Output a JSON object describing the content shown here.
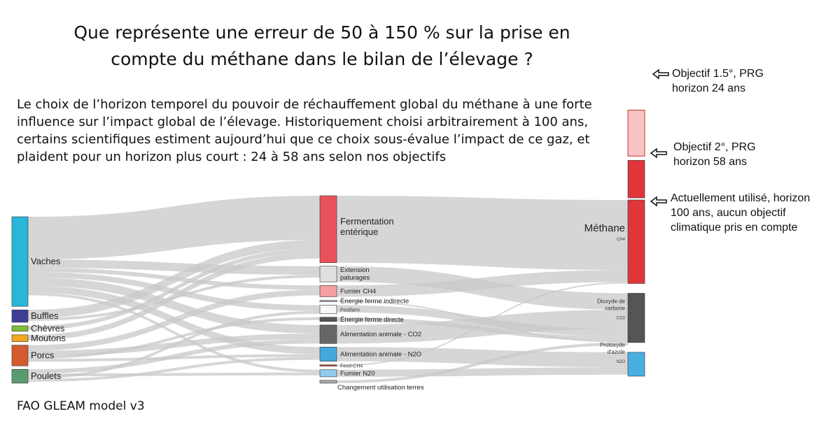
{
  "title": "Que représente une erreur de 50 à 150 % sur la prise en compte du méthane dans le bilan de l’élevage ?",
  "intro": "Le choix de l’horizon temporel du pouvoir de réchauffement global du méthane à une forte influence sur l’impact global de l’élevage. Historiquement choisi arbitrairement à 100 ans, certains scientifiques estiment aujourd’hui que ce choix sous-évalue l’impact de ce gaz, et plaident pour un horizon plus court : 24 à 58 ans selon nos objectifs",
  "source": "FAO GLEAM model v3",
  "chart_data": {
    "type": "sankey",
    "sources": [
      {
        "label": "Vaches",
        "color": "#29b6d8",
        "value": 65
      },
      {
        "label": "Buffles",
        "color": "#3f3f96",
        "value": 9
      },
      {
        "label": "Chèvres",
        "color": "#7cbc3c",
        "value": 4
      },
      {
        "label": "Moutons",
        "color": "#f0a820",
        "value": 5
      },
      {
        "label": "Porcs",
        "color": "#d45a30",
        "value": 15
      },
      {
        "label": "Poulets",
        "color": "#5a9a70",
        "value": 10
      }
    ],
    "processes": [
      {
        "label": "Fermentation entérique",
        "color": "#e8535b",
        "value": 47
      },
      {
        "label": "Extension paturages",
        "color": "#e0e0e0",
        "value": 11
      },
      {
        "label": "Fumier CH4",
        "color": "#f4a0a0",
        "value": 8
      },
      {
        "label": "Énergie ferme indirecte",
        "color": "#bbbbbb",
        "value": 1
      },
      {
        "label": "Postfarm",
        "color": "#f7f7f7",
        "value": 6
      },
      {
        "label": "Énergie ferme directe",
        "color": "#555555",
        "value": 3
      },
      {
        "label": "Alimentation animale - CO2",
        "color": "#666666",
        "value": 13
      },
      {
        "label": "Alimentation animale - N2O",
        "color": "#45a8dd",
        "value": 10
      },
      {
        "label": "Feed-CH4",
        "color": "#c0504d",
        "value": 1
      },
      {
        "label": "Fumier N20",
        "color": "#90cdf0",
        "value": 5
      },
      {
        "label": "Changement utilisation terres",
        "color": "#aaaaaa",
        "value": 2
      }
    ],
    "gases": [
      {
        "label": "Méthane",
        "sub": "CH4",
        "color": "#e0353b",
        "value": 56
      },
      {
        "label": "Dioxyde de carbone",
        "sub": "CO2",
        "color": "#555555",
        "value": 33
      },
      {
        "label": "Protoxyde d'azote",
        "sub": "N2O",
        "color": "#49aee0",
        "value": 16
      }
    ],
    "links": [
      {
        "from": "Vaches",
        "to": "Fermentation entérique",
        "value": 31
      },
      {
        "from": "Vaches",
        "to": "Extension paturages",
        "value": 6
      },
      {
        "from": "Vaches",
        "to": "Fumier CH4",
        "value": 3
      },
      {
        "from": "Vaches",
        "to": "Postfarm",
        "value": 4
      },
      {
        "from": "Vaches",
        "to": "Alimentation animale - CO2",
        "value": 6
      },
      {
        "from": "Vaches",
        "to": "Alimentation animale - N2O",
        "value": 5
      },
      {
        "from": "Vaches",
        "to": "Fumier N20",
        "value": 2
      },
      {
        "from": "Buffles",
        "to": "Fermentation entérique",
        "value": 6
      },
      {
        "from": "Buffles",
        "to": "Extension paturages",
        "value": 2
      },
      {
        "from": "Chèvres",
        "to": "Fermentation entérique",
        "value": 3
      },
      {
        "from": "Moutons",
        "to": "Fermentation entérique",
        "value": 4
      },
      {
        "from": "Porcs",
        "to": "Fumier CH4",
        "value": 4
      },
      {
        "from": "Porcs",
        "to": "Alimentation animale - CO2",
        "value": 4
      },
      {
        "from": "Porcs",
        "to": "Énergie ferme directe",
        "value": 2
      },
      {
        "from": "Porcs",
        "to": "Alimentation animale - N2O",
        "value": 2
      },
      {
        "from": "Poulets",
        "to": "Alimentation animale - CO2",
        "value": 3
      },
      {
        "from": "Poulets",
        "to": "Fumier N20",
        "value": 2
      },
      {
        "from": "Poulets",
        "to": "Postfarm",
        "value": 2
      },
      {
        "from": "Poulets",
        "to": "Alimentation animale - N2O",
        "value": 2
      },
      {
        "from": "Fermentation entérique",
        "to": "Méthane",
        "value": 47
      },
      {
        "from": "Fumier CH4",
        "to": "Méthane",
        "value": 8
      },
      {
        "from": "Extension paturages",
        "to": "Dioxyde de carbone",
        "value": 11
      },
      {
        "from": "Alimentation animale - CO2",
        "to": "Dioxyde de carbone",
        "value": 13
      },
      {
        "from": "Postfarm",
        "to": "Dioxyde de carbone",
        "value": 5
      },
      {
        "from": "Énergie ferme directe",
        "to": "Dioxyde de carbone",
        "value": 3
      },
      {
        "from": "Énergie ferme indirecte",
        "to": "Dioxyde de carbone",
        "value": 1
      },
      {
        "from": "Alimentation animale - N2O",
        "to": "Protoxyde d'azote",
        "value": 10
      },
      {
        "from": "Fumier N20",
        "to": "Protoxyde d'azote",
        "value": 5
      },
      {
        "from": "Changement utilisation terres",
        "to": "Dioxyde de carbone",
        "value": 2
      },
      {
        "from": "Feed-CH4",
        "to": "Méthane",
        "value": 1
      }
    ],
    "horizon_bars": [
      {
        "label": "Objectif 1.5°, PRG horizon 24 ans",
        "color": "#f6c4c4",
        "value": 2.0
      },
      {
        "label": "Objectif 2°, PRG horizon 58 ans",
        "color": "#e0353b",
        "value": 1.45
      },
      {
        "label": "Actuellement utilisé, horizon 100 ans, aucun objectif climatique pris en compte",
        "color": "#e0353b",
        "value": 1.0
      }
    ]
  },
  "annotations": {
    "horizon_24": [
      "Objectif 1.5°, PRG",
      "horizon 24 ans"
    ],
    "horizon_58": [
      "Objectif 2°, PRG",
      "horizon 58 ans"
    ],
    "horizon_100": [
      "Actuellement utilisé, horizon",
      "100 ans, aucun objectif",
      "climatique pris en compte"
    ]
  },
  "colors": {
    "link": "#c8c8c8",
    "outline": "#333333"
  }
}
